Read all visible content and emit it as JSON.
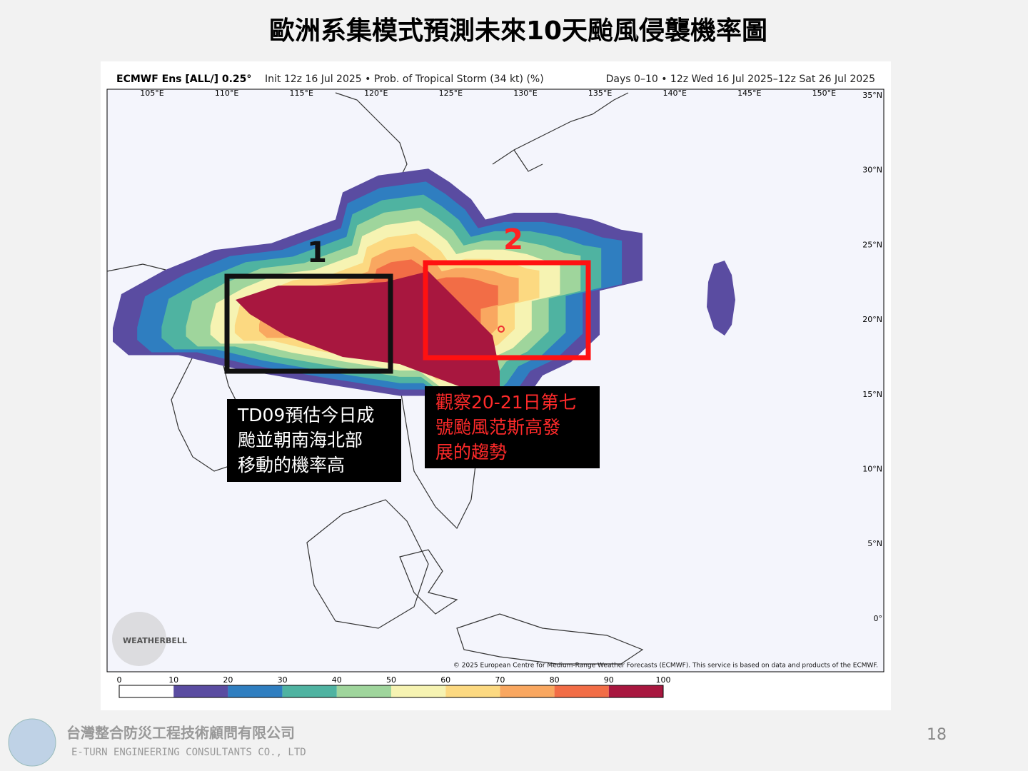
{
  "title": "歐洲系集模式預測未來10天颱風侵襲機率圖",
  "map": {
    "header_model": "ECMWF Ens [ALL/] 0.25°",
    "header_desc": "Init 12z 16 Jul 2025 • Prob. of Tropical Storm (34 kt) (%)",
    "header_right": "Days 0–10 • 12z Wed 16 Jul 2025–12z Sat 26 Jul 2025",
    "lon_labels": [
      "105°E",
      "110°E",
      "115°E",
      "120°E",
      "125°E",
      "130°E",
      "135°E",
      "140°E",
      "145°E",
      "150°E"
    ],
    "lat_labels": [
      "35°N",
      "30°N",
      "25°N",
      "20°N",
      "15°N",
      "10°N",
      "5°N",
      "0°"
    ],
    "copyright": "© 2025 European Centre for Medium-Range Weather Forecasts (ECMWF). This service is based on data and products of the ECMWF.",
    "logo": "WEATHERBELL"
  },
  "colorbar": {
    "ticks": [
      0,
      10,
      20,
      30,
      40,
      50,
      60,
      70,
      80,
      90,
      100
    ],
    "colors": [
      "#ffffff",
      "#5a4ca1",
      "#2f7ec0",
      "#4fb3a1",
      "#9fd59c",
      "#f6f3b2",
      "#fcd981",
      "#f9a760",
      "#f26d46",
      "#a8173f"
    ]
  },
  "annotations": {
    "box1_label": "1",
    "box2_label": "2",
    "note1": [
      "TD09預估今日成",
      "颱並朝南海北部",
      "移動的機率高"
    ],
    "note2": [
      "觀察20-21日第七",
      "號颱風范斯高發",
      "展的趨勢"
    ]
  },
  "footer": {
    "company_zh": "台灣整合防災工程技術顧問有限公司",
    "company_en": "E-TURN ENGINEERING CONSULTANTS CO., LTD",
    "page_number": 18
  }
}
